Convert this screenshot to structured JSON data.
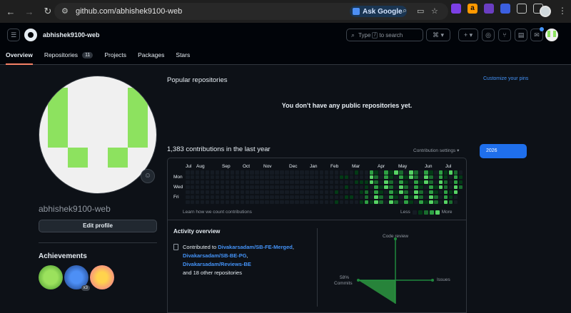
{
  "browser": {
    "url": "github.com/abhishek9100-web",
    "ask_label": "Ask Google"
  },
  "header": {
    "username": "abhishek9100-web",
    "search_type": "Type",
    "search_key": "/",
    "search_suffix": "to search"
  },
  "tabs": [
    {
      "label": "Overview",
      "selected": true
    },
    {
      "label": "Repositories",
      "count": "11"
    },
    {
      "label": "Projects"
    },
    {
      "label": "Packages"
    },
    {
      "label": "Stars"
    }
  ],
  "profile": {
    "username": "abhishek9100-web",
    "edit_label": "Edit profile",
    "achievements_title": "Achievements",
    "badge_count": "x3"
  },
  "popular": {
    "title": "Popular repositories",
    "customize": "Customize your pins",
    "empty": "You don't have any public repositories yet."
  },
  "contributions": {
    "title": "1,383 contributions in the last year",
    "settings": "Contribution settings",
    "year": "2026",
    "months": [
      "Jul",
      "Aug",
      "Sep",
      "Oct",
      "Nov",
      "Dec",
      "Jan",
      "Feb",
      "Mar",
      "Apr",
      "May",
      "Jun",
      "Jul"
    ],
    "days": [
      "Mon",
      "Wed",
      "Fri"
    ],
    "learn": "Learn how we count contributions",
    "less": "Less",
    "more": "More",
    "colors": [
      "#151b23",
      "#033a16",
      "#196c2e",
      "#2ea043",
      "#56d364"
    ]
  },
  "activity": {
    "title": "Activity overview",
    "contributed_prefix": "Contributed to",
    "repos": [
      "Divakarsadam/SB-FE-Merged",
      "Divakarsadam/SB-BE-PG",
      "Divakarsadam/Reviews-BE"
    ],
    "others": "and 18 other repositories",
    "radar": {
      "code_review": "Code review",
      "issues": "Issues",
      "commits_pct": "58%",
      "commits": "Commits"
    }
  }
}
